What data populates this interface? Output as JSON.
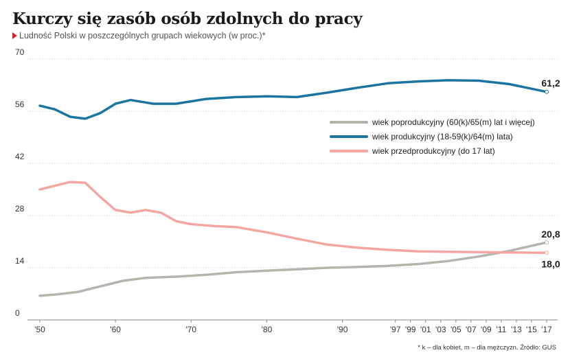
{
  "title": "Kurczy się zasób osób zdolnych do pracy",
  "subtitle": "Ludność Polski w poszczególnych grupach wiekowych (w proc.)*",
  "footnote": "* k – dla kobiet, m – dla mężczyzn. Źródło: GUS",
  "chart_data": {
    "type": "line",
    "ylim": [
      0,
      70
    ],
    "yticks": [
      0,
      14,
      28,
      42,
      56,
      70
    ],
    "grid": true,
    "legend_position": "right",
    "xlim": [
      1950,
      2017
    ],
    "xticks": [
      1950,
      1960,
      1970,
      1980,
      1990,
      1997,
      1999,
      2001,
      2003,
      2005,
      2007,
      2009,
      2011,
      2013,
      2015,
      2017
    ],
    "xtick_labels": [
      "'50",
      "'60",
      "'70",
      "'80",
      "'90",
      "'97",
      "'99",
      "'01",
      "'03",
      "'05",
      "'07",
      "'09",
      "'11",
      "'13",
      "'15",
      "'17"
    ],
    "series": [
      {
        "name": "wiek poprodukcyjny (60(k)/65(m) lat i więcej)",
        "color": "#b5b5ae",
        "x": [
          1950,
          1952,
          1955,
          1958,
          1961,
          1964,
          1968,
          1972,
          1976,
          1980,
          1984,
          1988,
          1992,
          1996,
          2000,
          2004,
          2008,
          2012,
          2017
        ],
        "values": [
          6.5,
          6.8,
          7.5,
          9.0,
          10.5,
          11.3,
          11.6,
          12.1,
          12.8,
          13.2,
          13.6,
          14.0,
          14.2,
          14.5,
          15.0,
          15.8,
          17.0,
          18.5,
          20.8
        ],
        "end_label": "20,8"
      },
      {
        "name": "wiek produkcyjny (18-59(k)/64(m) lata)",
        "color": "#1b75a0",
        "x": [
          1950,
          1952,
          1954,
          1956,
          1958,
          1960,
          1962,
          1965,
          1968,
          1972,
          1976,
          1980,
          1984,
          1988,
          1992,
          1996,
          2000,
          2004,
          2008,
          2012,
          2017
        ],
        "values": [
          57.5,
          56.5,
          54.5,
          54.0,
          55.5,
          58.0,
          59.0,
          58.0,
          58.0,
          59.3,
          59.8,
          60.0,
          59.8,
          61.0,
          62.3,
          63.5,
          64.0,
          64.3,
          64.2,
          63.3,
          61.2
        ],
        "end_label": "61,2"
      },
      {
        "name": "wiek przedprodukcyjny (do 17 lat)",
        "color": "#f4a6a3",
        "x": [
          1950,
          1952,
          1954,
          1956,
          1958,
          1960,
          1962,
          1964,
          1966,
          1968,
          1970,
          1973,
          1976,
          1980,
          1984,
          1988,
          1992,
          1996,
          2000,
          2004,
          2008,
          2012,
          2017
        ],
        "values": [
          35.0,
          36.0,
          37.0,
          36.8,
          33.0,
          29.5,
          28.8,
          29.5,
          28.8,
          26.5,
          25.7,
          25.2,
          24.9,
          23.5,
          21.8,
          20.2,
          19.4,
          18.8,
          18.4,
          18.3,
          18.2,
          18.1,
          18.0
        ],
        "end_label": "18,0"
      }
    ]
  }
}
